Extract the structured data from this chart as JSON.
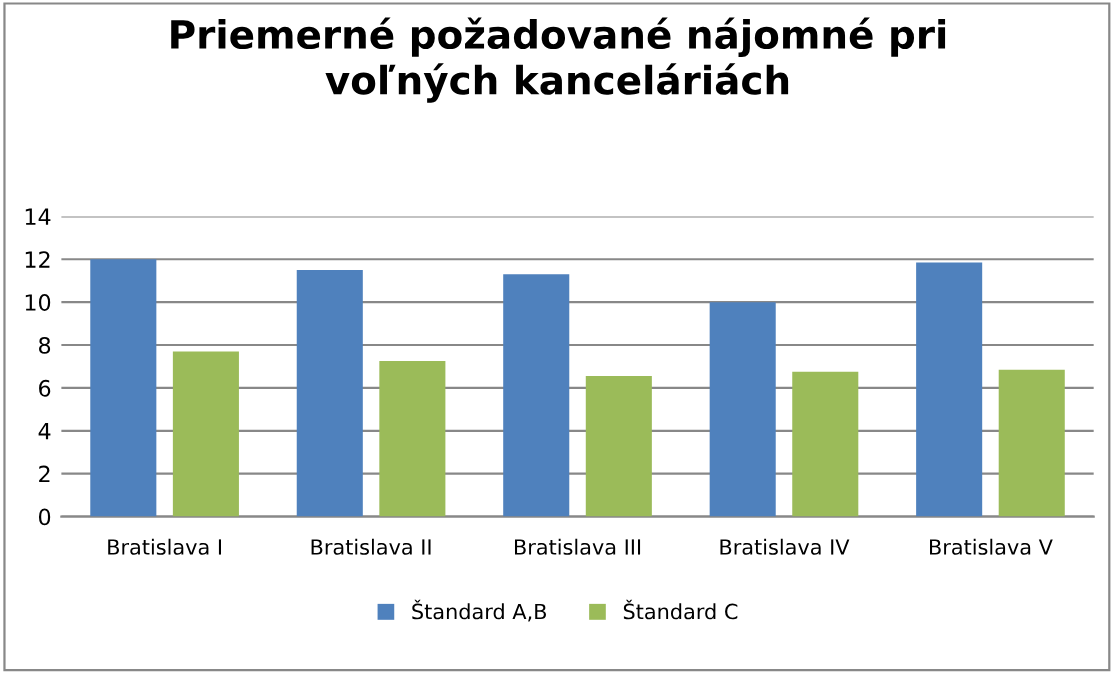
{
  "chart_data": {
    "type": "bar",
    "title": "Priemerné požadované nájomné pri\nvoľných kanceláriách",
    "categories": [
      "Bratislava I",
      "Bratislava II",
      "Bratislava III",
      "Bratislava IV",
      "Bratislava V"
    ],
    "series": [
      {
        "name": "Štandard A,B",
        "color": "#4f81bd",
        "values": [
          12.0,
          11.5,
          11.3,
          10.0,
          11.85
        ]
      },
      {
        "name": "Štandard C",
        "color": "#9bbb59",
        "values": [
          7.7,
          7.25,
          6.55,
          6.75,
          6.85
        ]
      }
    ],
    "ylim": [
      0,
      14
    ],
    "yticks": [
      0,
      2,
      4,
      6,
      8,
      10,
      12,
      14
    ],
    "grid": "y",
    "legend": "bottom"
  }
}
